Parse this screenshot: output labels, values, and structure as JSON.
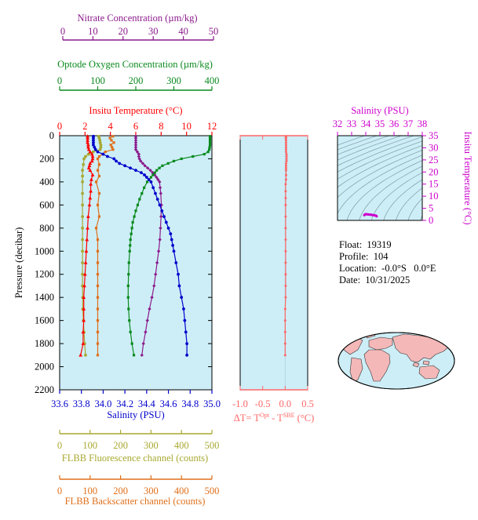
{
  "float_info": {
    "float_label": "Float:  19319",
    "profile_label": "Profile:  104",
    "location_label": "Location:  -0.0°S   0.0°E",
    "date_label": "Date:  10/31/2025"
  },
  "colors": {
    "temperature": "#ff0000",
    "salinity": "#0000cc",
    "oxygen": "#0a8a1e",
    "nitrate": "#8b1a8b",
    "fluorescence": "#a8a832",
    "backscatter": "#e06f1a",
    "delta_t": "#ff6666",
    "ts_axis": "#cc00cc",
    "panel_bg": "#cdeef7",
    "land": "#f4b8b8"
  },
  "chart_data": [
    {
      "type": "line",
      "id": "profiles",
      "ylabel": "Pressure (decibar)",
      "y_ticks": [
        "0",
        "200",
        "400",
        "600",
        "800",
        "1000",
        "1200",
        "1400",
        "1600",
        "1800",
        "2000",
        "2200"
      ],
      "ylim": [
        2200,
        0
      ],
      "grid": false,
      "axes": {
        "nitrate": {
          "label": "Nitrate Concentration (µm/kg)",
          "ticks": [
            "0",
            "10",
            "20",
            "30",
            "40",
            "50"
          ],
          "range": [
            0,
            50
          ]
        },
        "oxygen": {
          "label": "Optode Oxygen Concentration (µm/kg)",
          "ticks": [
            "0",
            "100",
            "200",
            "300",
            "400"
          ],
          "range": [
            0,
            400
          ]
        },
        "temperature": {
          "label": "Insitu Temperature (°C)",
          "ticks": [
            "0",
            "2",
            "4",
            "6",
            "8",
            "10",
            "12"
          ],
          "range": [
            0,
            12
          ]
        },
        "salinity": {
          "label": "Salinity (PSU)",
          "ticks": [
            "33.6",
            "33.8",
            "34.0",
            "34.2",
            "34.4",
            "34.6",
            "34.8",
            "35.0"
          ],
          "range": [
            33.6,
            35.0
          ]
        },
        "fluorescence": {
          "label": "FLBB Fluorescence channel (counts)",
          "ticks": [
            "0",
            "100",
            "200",
            "300",
            "400",
            "500"
          ],
          "range": [
            0,
            500
          ]
        },
        "backscatter": {
          "label": "FLBB Backscatter channel (counts)",
          "ticks": [
            "0",
            "100",
            "200",
            "300",
            "400",
            "500"
          ],
          "range": [
            0,
            500
          ]
        }
      },
      "series": [
        {
          "axis": "temperature",
          "marker": "triangle",
          "pressure": [
            5,
            20,
            40,
            60,
            80,
            100,
            120,
            140,
            160,
            180,
            200,
            220,
            240,
            260,
            280,
            300,
            340,
            380,
            420,
            480,
            540,
            600,
            700,
            800,
            900,
            1000,
            1100,
            1200,
            1300,
            1400,
            1500,
            1600,
            1700,
            1800,
            1900
          ],
          "values": [
            2.2,
            2.2,
            2.2,
            2.2,
            2.25,
            2.25,
            2.3,
            2.4,
            2.55,
            2.6,
            2.6,
            2.55,
            2.4,
            2.35,
            2.3,
            2.4,
            2.6,
            2.5,
            2.45,
            2.45,
            2.4,
            2.35,
            2.25,
            2.2,
            2.15,
            2.1,
            2.05,
            2.0,
            1.95,
            1.9,
            1.9,
            1.9,
            1.85,
            1.85,
            1.65
          ]
        },
        {
          "axis": "salinity",
          "marker": "circle",
          "pressure": [
            5,
            20,
            40,
            60,
            80,
            100,
            120,
            140,
            160,
            180,
            200,
            220,
            240,
            260,
            280,
            300,
            320,
            340,
            360,
            380,
            400,
            450,
            500,
            550,
            600,
            650,
            700,
            750,
            800,
            850,
            900,
            950,
            1000,
            1100,
            1200,
            1300,
            1400,
            1500,
            1600,
            1700,
            1800,
            1900
          ],
          "values": [
            33.91,
            33.91,
            33.91,
            33.91,
            33.91,
            33.92,
            33.93,
            33.95,
            34.0,
            34.04,
            34.1,
            34.12,
            34.15,
            34.2,
            34.25,
            34.3,
            34.35,
            34.38,
            34.4,
            34.42,
            34.44,
            34.46,
            34.48,
            34.5,
            34.52,
            34.54,
            34.56,
            34.58,
            34.6,
            34.62,
            34.63,
            34.64,
            34.65,
            34.67,
            34.69,
            34.7,
            34.72,
            34.74,
            34.75,
            34.76,
            34.77,
            34.77
          ]
        },
        {
          "axis": "oxygen",
          "marker": "square",
          "pressure": [
            5,
            20,
            40,
            60,
            80,
            100,
            120,
            140,
            160,
            180,
            200,
            220,
            240,
            260,
            280,
            300,
            320,
            340,
            360,
            380,
            400,
            450,
            500,
            550,
            600,
            650,
            700,
            750,
            800,
            850,
            900,
            950,
            1000,
            1100,
            1200,
            1300,
            1400,
            1500,
            1600,
            1700,
            1800,
            1900
          ],
          "values": [
            395,
            395,
            395,
            395,
            395,
            394,
            393,
            390,
            380,
            350,
            320,
            300,
            285,
            270,
            262,
            255,
            250,
            245,
            240,
            235,
            230,
            222,
            216,
            210,
            205,
            200,
            196,
            192,
            190,
            188,
            186,
            185,
            184,
            182,
            181,
            180,
            180,
            181,
            183,
            186,
            190,
            195
          ]
        },
        {
          "axis": "nitrate",
          "marker": "diamond",
          "pressure": [
            5,
            20,
            40,
            60,
            80,
            100,
            120,
            140,
            160,
            180,
            200,
            220,
            240,
            260,
            280,
            300,
            320,
            340,
            360,
            380,
            400,
            450,
            500,
            600,
            700,
            800,
            900,
            1000,
            1100,
            1200,
            1300,
            1400,
            1500,
            1600,
            1700,
            1800,
            1900
          ],
          "values": [
            25,
            25,
            25,
            25,
            25,
            25,
            25,
            25.5,
            26,
            26,
            26.2,
            26.6,
            27.3,
            28,
            28.9,
            29.8,
            30.5,
            31.2,
            31.8,
            32.3,
            32.8,
            33,
            33.2,
            33.4,
            33.3,
            33.1,
            32.9,
            32.5,
            32,
            31.5,
            31,
            30.3,
            29.5,
            28.8,
            28.2,
            27.5,
            27
          ]
        },
        {
          "axis": "fluorescence",
          "marker": "circle",
          "pressure": [
            5,
            20,
            40,
            60,
            80,
            100,
            120,
            140,
            160,
            180,
            200,
            250,
            300,
            350,
            400,
            500,
            600,
            700,
            800,
            900,
            1000,
            1100,
            1200,
            1300,
            1400,
            1500,
            1600,
            1700,
            1800,
            1900
          ],
          "values": [
            128,
            130,
            132,
            133,
            135,
            135,
            133,
            110,
            95,
            85,
            80,
            78,
            75,
            75,
            75,
            75,
            75,
            75,
            75,
            75,
            75,
            75,
            75,
            75,
            76,
            76,
            78,
            80,
            82,
            85
          ]
        },
        {
          "axis": "backscatter",
          "marker": "square",
          "pressure": [
            5,
            20,
            40,
            60,
            80,
            100,
            120,
            140,
            160,
            180,
            200,
            250,
            300,
            350,
            400,
            500,
            600,
            700,
            800,
            900,
            1000,
            1100,
            1200,
            1300,
            1400,
            1500,
            1600,
            1700,
            1800,
            1900
          ],
          "values": [
            175,
            165,
            170,
            178,
            168,
            172,
            175,
            150,
            140,
            130,
            125,
            130,
            125,
            130,
            120,
            130,
            125,
            130,
            120,
            125,
            125,
            125,
            125,
            125,
            125,
            125,
            125,
            125,
            125,
            125
          ]
        }
      ]
    },
    {
      "type": "line",
      "id": "delta_t",
      "xlabel_main": "ΔT= T",
      "xlabel_sup1": "Opt",
      "xlabel_mid": " - T",
      "xlabel_sup2": "SBE",
      "xlabel_unit": " (°C)",
      "x_ticks": [
        "-1.0",
        "-0.5",
        "0.0",
        "0.5"
      ],
      "xlim": [
        -1.0,
        0.5
      ],
      "ylim": [
        2200,
        0
      ],
      "pressure": [
        5,
        20,
        40,
        60,
        80,
        100,
        120,
        140,
        160,
        180,
        200,
        220,
        240,
        260,
        280,
        300,
        340,
        380,
        420,
        480,
        540,
        600,
        700,
        800,
        900,
        1000,
        1100,
        1200,
        1300,
        1400,
        1500,
        1600,
        1700,
        1800,
        1900
      ],
      "values": [
        0.02,
        0.02,
        0.02,
        0.02,
        0.02,
        0.02,
        0.02,
        0.02,
        0.03,
        0.03,
        0.03,
        0.03,
        0.02,
        0.02,
        0.02,
        0.02,
        0.02,
        0.02,
        0.01,
        0.01,
        0.01,
        0.01,
        0.01,
        0.01,
        0.01,
        0.01,
        0.01,
        0.01,
        0.01,
        0.01,
        0.0,
        0.0,
        0.0,
        0.0,
        0.0
      ]
    },
    {
      "type": "scatter",
      "id": "ts_diagram",
      "xlabel": "Salinity (PSU)",
      "ylabel": "Insitu Temperature (°C)",
      "x_ticks": [
        "32",
        "33",
        "34",
        "35",
        "36",
        "37",
        "38"
      ],
      "y_ticks": [
        "0",
        "5",
        "10",
        "15",
        "20",
        "25",
        "30",
        "35"
      ],
      "xlim": [
        32,
        38
      ],
      "ylim": [
        0,
        35
      ],
      "salinity": [
        33.9,
        33.95,
        34.0,
        34.1,
        34.2,
        34.3,
        34.4,
        34.5,
        34.6,
        34.7,
        34.77
      ],
      "temperature": [
        2.2,
        2.4,
        2.6,
        2.5,
        2.45,
        2.4,
        2.3,
        2.2,
        2.1,
        2.0,
        1.7
      ]
    }
  ]
}
